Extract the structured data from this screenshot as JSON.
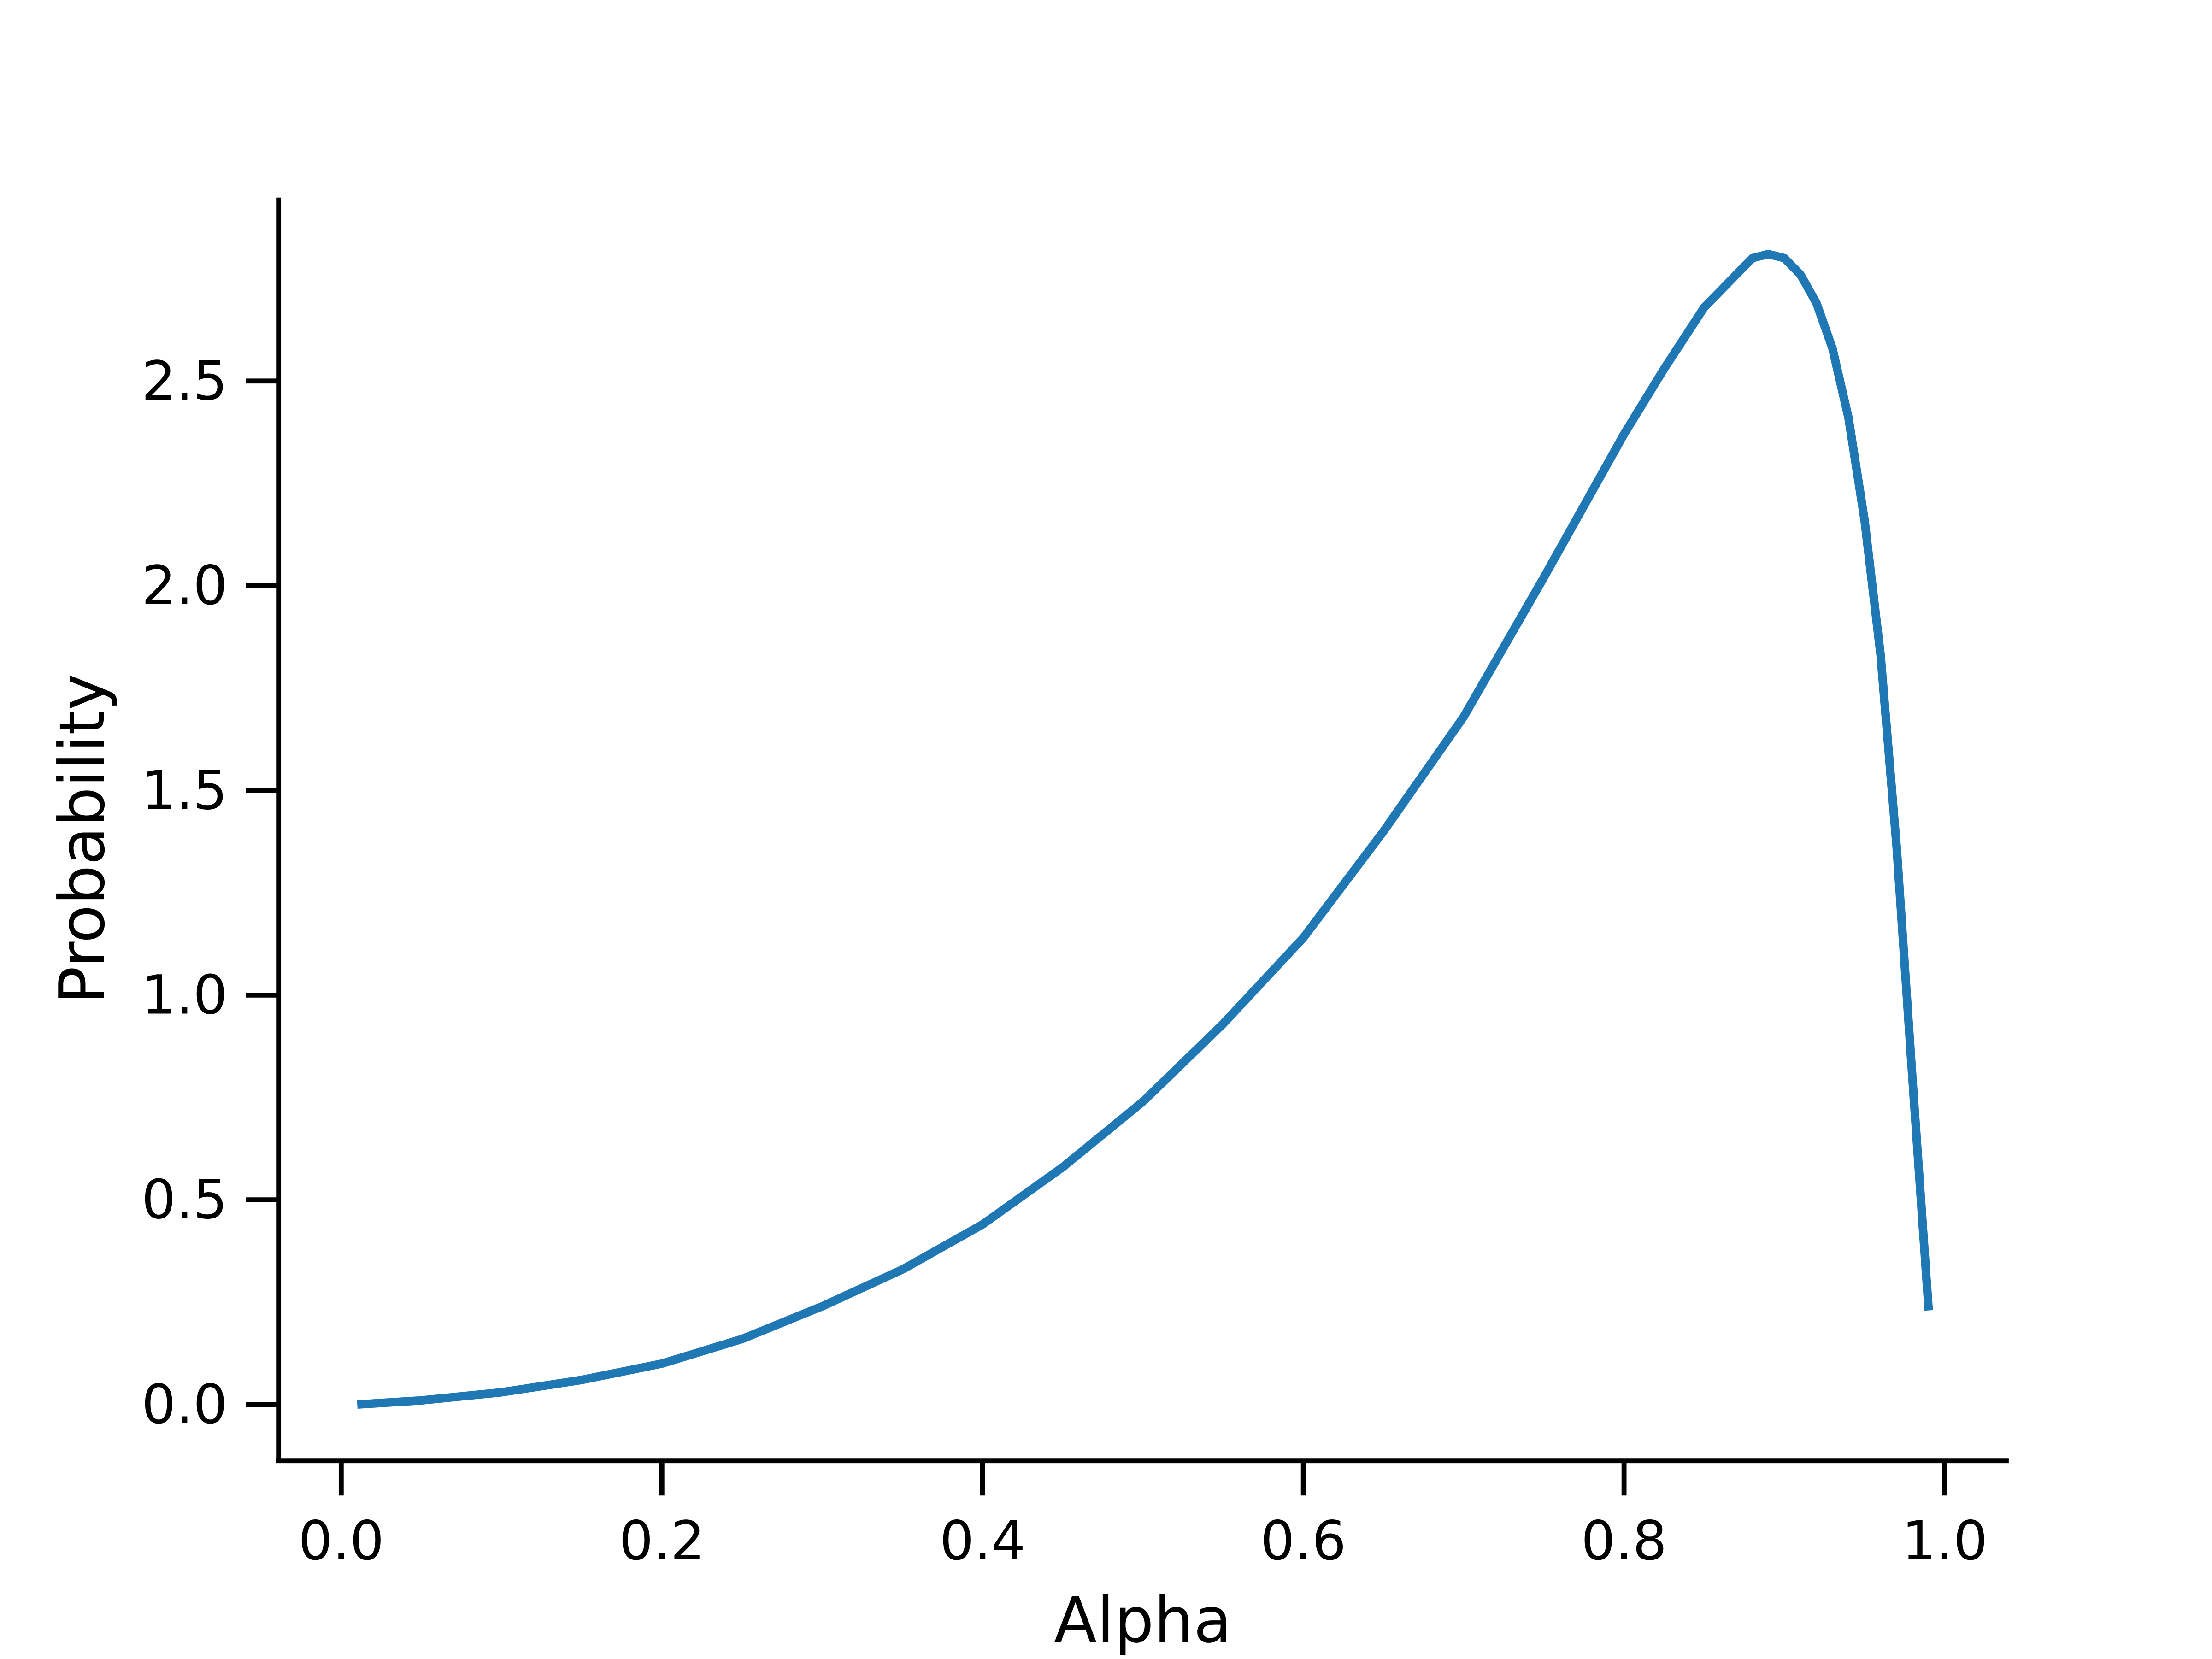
{
  "chart_data": {
    "type": "line",
    "title": "",
    "xlabel": "Alpha",
    "ylabel": "Probability",
    "xlim": [
      -0.04,
      1.04
    ],
    "ylim": [
      -0.14,
      2.95
    ],
    "grid": false,
    "x_ticks": [
      0.0,
      0.2,
      0.4,
      0.6,
      0.8,
      1.0
    ],
    "x_tick_labels": [
      "0.0",
      "0.2",
      "0.4",
      "0.6",
      "0.8",
      "1.0"
    ],
    "y_ticks": [
      0.0,
      0.5,
      1.0,
      1.5,
      2.0,
      2.5
    ],
    "y_tick_labels": [
      "0.0",
      "0.5",
      "1.0",
      "1.5",
      "2.0",
      "2.5"
    ],
    "line_color": "#1f77b4",
    "series": [
      {
        "x": [
          0.01,
          0.05,
          0.1,
          0.15,
          0.2,
          0.25,
          0.3,
          0.35,
          0.4,
          0.45,
          0.5,
          0.55,
          0.6,
          0.65,
          0.7,
          0.75,
          0.8,
          0.825,
          0.85,
          0.87,
          0.88,
          0.89,
          0.9,
          0.91,
          0.92,
          0.93,
          0.94,
          0.95,
          0.96,
          0.97,
          0.98,
          0.99
        ],
        "y": [
          0.0,
          0.01,
          0.03,
          0.06,
          0.1,
          0.16,
          0.24,
          0.33,
          0.44,
          0.58,
          0.74,
          0.93,
          1.14,
          1.4,
          1.68,
          2.02,
          2.37,
          2.53,
          2.68,
          2.76,
          2.8,
          2.81,
          2.8,
          2.76,
          2.69,
          2.58,
          2.41,
          2.16,
          1.83,
          1.36,
          0.79,
          0.23
        ]
      }
    ]
  }
}
